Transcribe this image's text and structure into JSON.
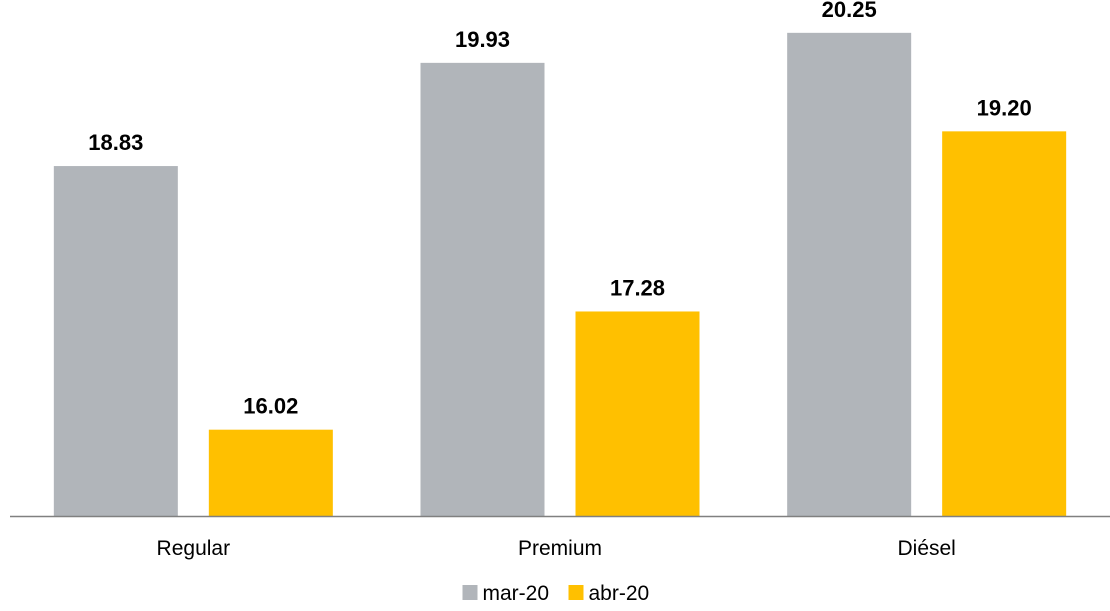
{
  "chart_data": {
    "type": "bar",
    "categories": [
      "Regular",
      "Premium",
      "Diésel"
    ],
    "series": [
      {
        "name": "mar-20",
        "values": [
          18.83,
          19.93,
          20.25
        ],
        "labels": [
          "18.83",
          "19.93",
          "20.25"
        ],
        "color": "#B1B5BA"
      },
      {
        "name": "abr-20",
        "values": [
          16.02,
          17.28,
          19.2
        ],
        "labels": [
          "16.02",
          "17.28",
          "19.20"
        ],
        "color": "#FFC000"
      }
    ],
    "ylim": [
      15.1,
      20.6
    ],
    "grid": false,
    "legend": "bottom",
    "axis_color": "#808080"
  }
}
